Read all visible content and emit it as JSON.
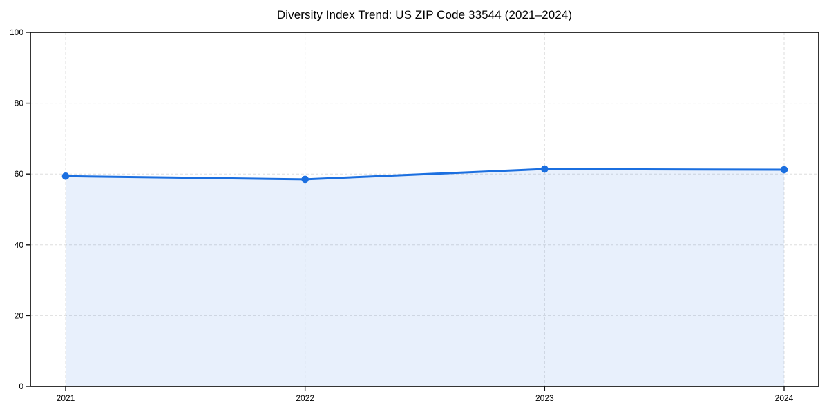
{
  "figure": {
    "background": "#ffffff"
  },
  "chart_data": {
    "type": "line",
    "subtype": "line-with-area-fill-and-markers",
    "title": "Diversity Index Trend: US ZIP Code 33544 (2021–2024)",
    "categories": [
      "2021",
      "2022",
      "2023",
      "2024"
    ],
    "series": [
      {
        "name": "Diversity Index",
        "values": [
          59.4,
          58.5,
          61.4,
          61.2
        ]
      }
    ],
    "xlabel": "",
    "ylabel": "",
    "ylim": [
      0,
      100
    ],
    "yticks": [
      0,
      20,
      40,
      60,
      80,
      100
    ],
    "grid": "dashed light-gray, horizontal and vertical",
    "legend": "none",
    "colors": {
      "line": "#1b6fe0",
      "marker": "#1b6fe0",
      "fill": "#1b6fe0",
      "fill_opacity": 0.1,
      "gridline": "#dedede",
      "spine": "#111111",
      "text": "#000000"
    }
  }
}
